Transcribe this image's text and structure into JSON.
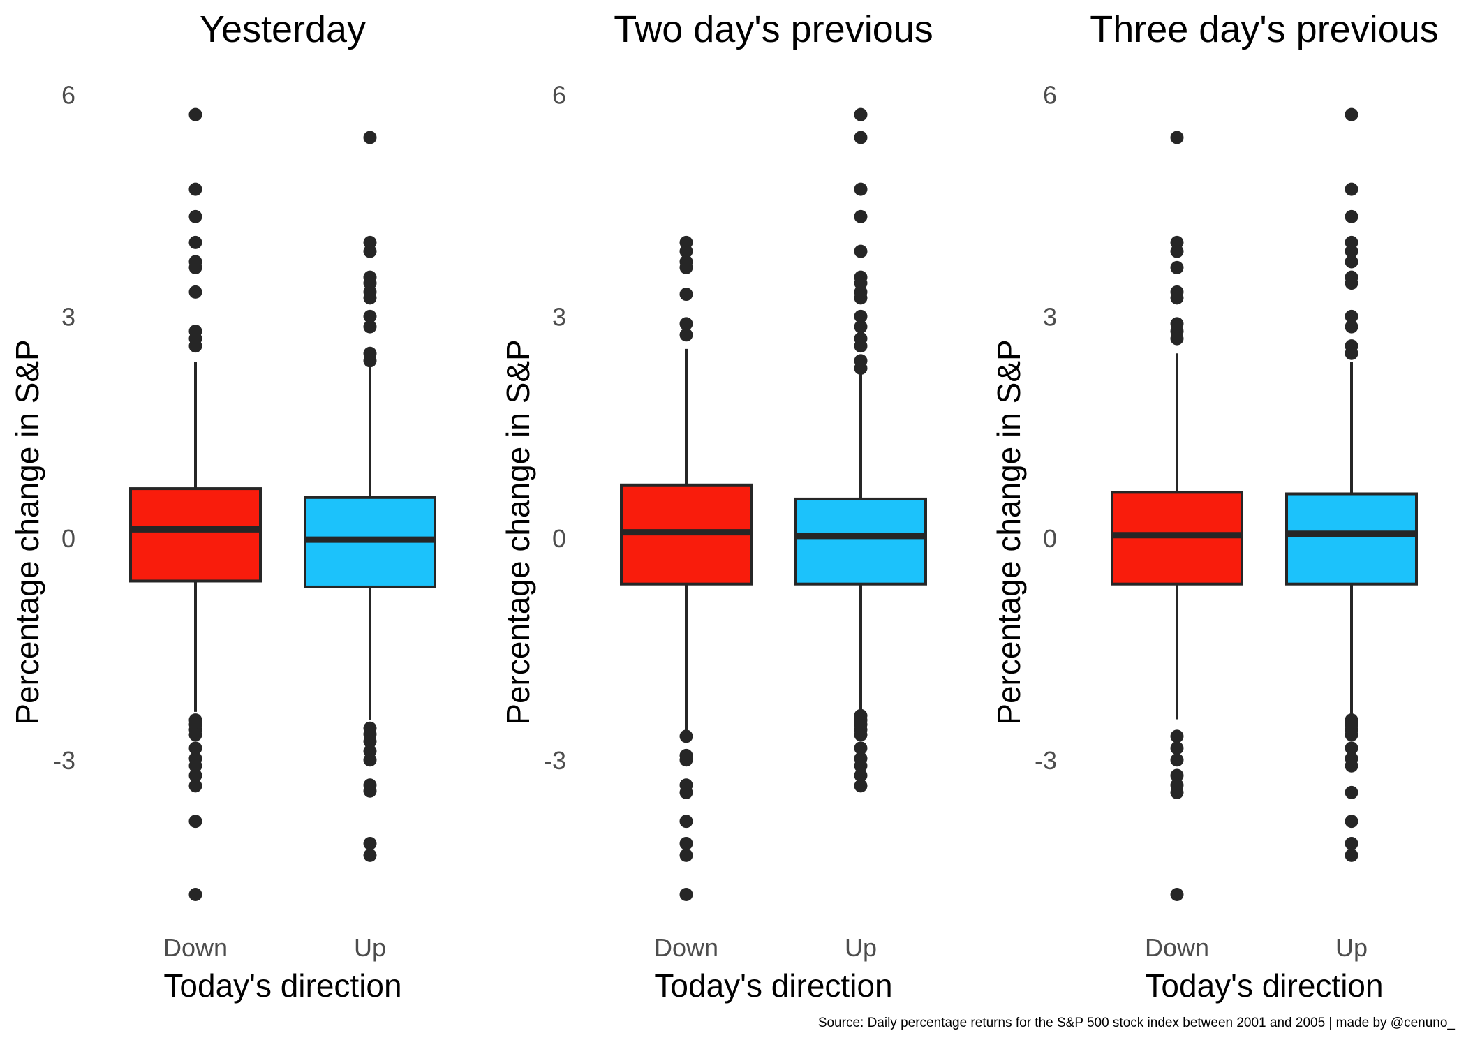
{
  "caption": "Source: Daily percentage returns for the S&P 500 stock index between 2001 and 2005 | made by @cenuno_",
  "colors": {
    "down": "#f91c0c",
    "up": "#1cc2fb",
    "ink": "#262626"
  },
  "chart_data": [
    {
      "type": "box",
      "title": "Yesterday",
      "xlabel": "Today's direction",
      "ylabel": "Percentage change in S&P",
      "categories": [
        "Down",
        "Up"
      ],
      "yticks": [
        -3,
        0,
        3,
        6
      ],
      "ylim": [
        -4.9,
        6.1
      ],
      "boxes": [
        {
          "category": "Down",
          "lower_whisker": -2.35,
          "q1": -0.58,
          "median": 0.12,
          "q3": 0.67,
          "upper_whisker": 2.38,
          "outliers": [
            5.73,
            4.72,
            4.35,
            4.0,
            3.74,
            3.66,
            3.33,
            2.8,
            2.7,
            2.6,
            -2.46,
            -2.52,
            -2.59,
            -2.66,
            -2.84,
            -2.98,
            -3.08,
            -3.21,
            -3.35,
            -3.83,
            -4.82
          ]
        },
        {
          "category": "Up",
          "lower_whisker": -2.46,
          "q1": -0.66,
          "median": -0.02,
          "q3": 0.55,
          "upper_whisker": 2.34,
          "outliers": [
            5.42,
            4.0,
            3.88,
            3.53,
            3.45,
            3.33,
            3.25,
            3.0,
            2.86,
            2.5,
            2.4,
            -2.57,
            -2.65,
            -2.75,
            -2.88,
            -3.0,
            -3.34,
            -3.42,
            -4.13,
            -4.29
          ]
        }
      ]
    },
    {
      "type": "box",
      "title": "Two day's previous",
      "xlabel": "Today's direction",
      "ylabel": "Percentage change in S&P",
      "categories": [
        "Down",
        "Up"
      ],
      "yticks": [
        -3,
        0,
        3,
        6
      ],
      "ylim": [
        -4.9,
        6.1
      ],
      "boxes": [
        {
          "category": "Down",
          "lower_whisker": -2.62,
          "q1": -0.62,
          "median": 0.08,
          "q3": 0.72,
          "upper_whisker": 2.56,
          "outliers": [
            4.0,
            3.88,
            3.74,
            3.66,
            3.3,
            2.9,
            2.75,
            -2.68,
            -2.94,
            -3.0,
            -3.34,
            -3.44,
            -3.83,
            -4.13,
            -4.29,
            -4.82
          ]
        },
        {
          "category": "Up",
          "lower_whisker": -2.33,
          "q1": -0.62,
          "median": 0.03,
          "q3": 0.53,
          "upper_whisker": 2.25,
          "outliers": [
            5.73,
            5.42,
            4.72,
            4.35,
            3.88,
            3.53,
            3.45,
            3.33,
            3.25,
            3.0,
            2.86,
            2.7,
            2.6,
            2.4,
            2.3,
            -2.4,
            -2.46,
            -2.52,
            -2.59,
            -2.66,
            -2.84,
            -2.98,
            -3.08,
            -3.21,
            -3.35
          ]
        }
      ]
    },
    {
      "type": "box",
      "title": "Three day's previous",
      "xlabel": "Today's direction",
      "ylabel": "Percentage change in S&P",
      "categories": [
        "Down",
        "Up"
      ],
      "yticks": [
        -3,
        0,
        3,
        6
      ],
      "ylim": [
        -4.9,
        6.1
      ],
      "boxes": [
        {
          "category": "Down",
          "lower_whisker": -2.45,
          "q1": -0.62,
          "median": 0.04,
          "q3": 0.62,
          "upper_whisker": 2.5,
          "outliers": [
            5.42,
            4.0,
            3.88,
            3.66,
            3.33,
            3.25,
            2.9,
            2.8,
            2.7,
            -2.68,
            -2.84,
            -3.0,
            -3.21,
            -3.34,
            -3.44,
            -4.82
          ]
        },
        {
          "category": "Up",
          "lower_whisker": -2.45,
          "q1": -0.62,
          "median": 0.06,
          "q3": 0.6,
          "upper_whisker": 2.38,
          "outliers": [
            5.73,
            4.72,
            4.35,
            4.0,
            3.88,
            3.74,
            3.53,
            3.45,
            3.0,
            2.86,
            2.6,
            2.5,
            -2.46,
            -2.52,
            -2.59,
            -2.66,
            -2.84,
            -2.98,
            -3.08,
            -3.44,
            -3.83,
            -4.13,
            -4.29
          ]
        }
      ]
    }
  ]
}
